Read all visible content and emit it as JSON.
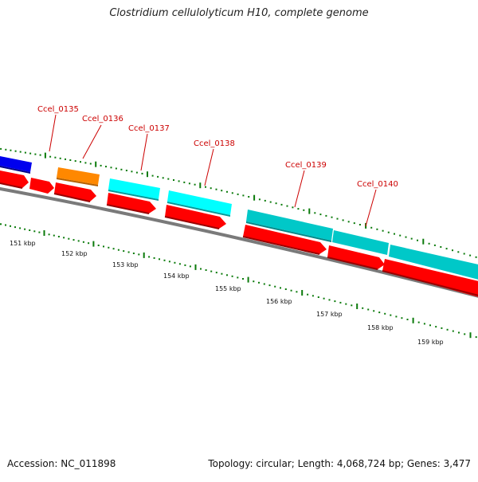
{
  "title": "Clostridium cellulolyticum H10, complete genome",
  "accession": "Accession: NC_011898",
  "summary": "Topology: circular; Length: 4,068,724 bp; Genes: 3,477",
  "colors": {
    "backbone": "#7a7a7a",
    "tick": "#0a7a0a",
    "gene_label": "#cc0000",
    "cds_forward": "#ff0000",
    "ruler_text": "#111111"
  },
  "genes": [
    {
      "name": "",
      "color": "#0000ee"
    },
    {
      "name": "Ccel_0135",
      "color": "#ff8800"
    },
    {
      "name": "Ccel_0136",
      "color": "#ff8800"
    },
    {
      "name": "Ccel_0137",
      "color": "#00ffff"
    },
    {
      "name": "Ccel_0138",
      "color": "#00ffff"
    },
    {
      "name": "Ccel_0139",
      "color": "#00c8c8"
    },
    {
      "name": "Ccel_0140",
      "color": "#00c8c8"
    }
  ],
  "ruler_labels": [
    "151 kbp",
    "152 kbp",
    "153 kbp",
    "154 kbp",
    "155 kbp",
    "156 kbp",
    "157 kbp",
    "158 kbp",
    "159 kbp"
  ]
}
